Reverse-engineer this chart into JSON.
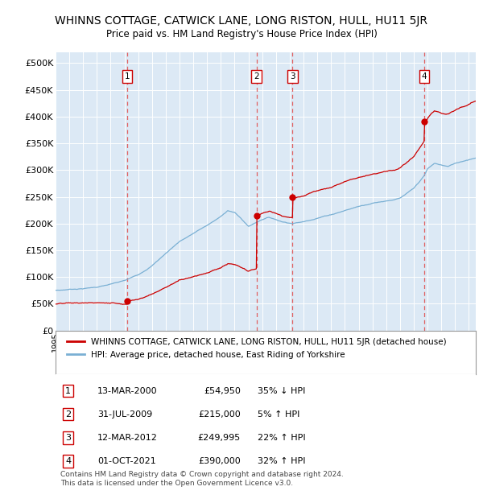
{
  "title": "WHINNS COTTAGE, CATWICK LANE, LONG RISTON, HULL, HU11 5JR",
  "subtitle": "Price paid vs. HM Land Registry's House Price Index (HPI)",
  "title_fontsize": 10,
  "subtitle_fontsize": 8.5,
  "background_color": "#dce9f5",
  "ylim": [
    0,
    520000
  ],
  "yticks": [
    0,
    50000,
    100000,
    150000,
    200000,
    250000,
    300000,
    350000,
    400000,
    450000,
    500000
  ],
  "sale_dates_decimal": [
    2000.2,
    2009.58,
    2012.2,
    2021.75
  ],
  "sale_prices": [
    54950,
    215000,
    249995,
    390000
  ],
  "sale_labels": [
    "1",
    "2",
    "3",
    "4"
  ],
  "sale_color": "#cc0000",
  "hpi_color": "#7ab0d4",
  "legend_entries": [
    "WHINNS COTTAGE, CATWICK LANE, LONG RISTON, HULL, HU11 5JR (detached house)",
    "HPI: Average price, detached house, East Riding of Yorkshire"
  ],
  "table_data": [
    [
      "1",
      "13-MAR-2000",
      "£54,950",
      "35% ↓ HPI"
    ],
    [
      "2",
      "31-JUL-2009",
      "£215,000",
      "5% ↑ HPI"
    ],
    [
      "3",
      "12-MAR-2012",
      "£249,995",
      "22% ↑ HPI"
    ],
    [
      "4",
      "01-OCT-2021",
      "£390,000",
      "32% ↑ HPI"
    ]
  ],
  "footnote": "Contains HM Land Registry data © Crown copyright and database right 2024.\nThis data is licensed under the Open Government Licence v3.0.",
  "grid_color": "#ffffff",
  "dashed_line_color": "#e06060"
}
